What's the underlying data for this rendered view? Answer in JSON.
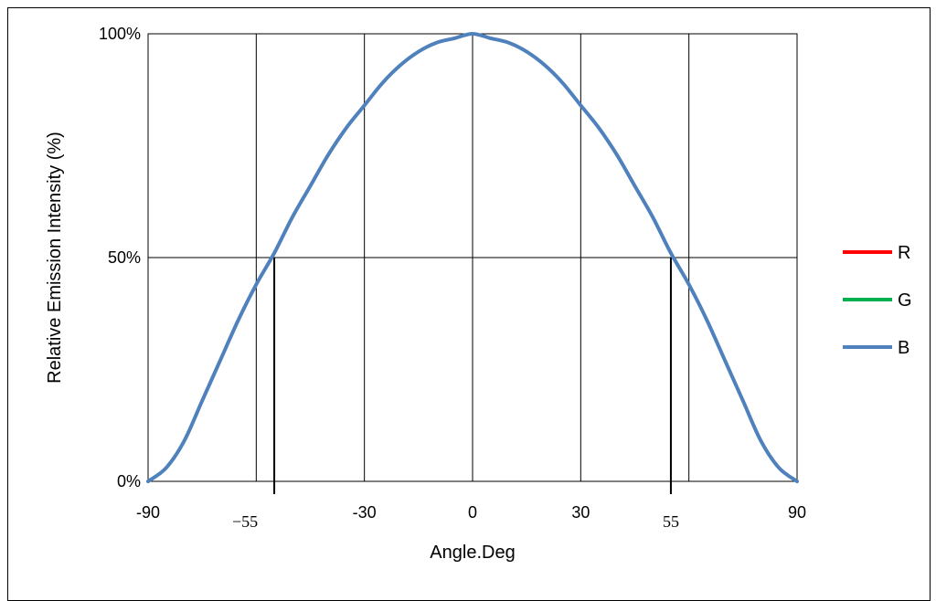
{
  "chart_data": {
    "type": "line",
    "title": "",
    "xlabel": "Angle.Deg",
    "ylabel": "Relative Emission Intensity (%)",
    "xlim": [
      -90,
      90
    ],
    "ylim": [
      0,
      100
    ],
    "x_ticks": [
      -90,
      -30,
      0,
      30,
      90
    ],
    "x_tick_labels": [
      "-90",
      "-30",
      "0",
      "30",
      "90"
    ],
    "x_annotation_ticks": [
      -55,
      55
    ],
    "x_annotation_labels": [
      "−55",
      "55"
    ],
    "y_ticks": [
      0,
      50,
      100
    ],
    "y_tick_labels": [
      "0%",
      "50%",
      "100%"
    ],
    "grid": true,
    "vertical_gridlines": [
      -60,
      -30,
      0,
      30,
      60
    ],
    "half_intensity_marker_angles": [
      -55,
      55
    ],
    "legend_position": "right",
    "series": [
      {
        "name": "R",
        "color": "#ff0000",
        "x": [],
        "y": []
      },
      {
        "name": "G",
        "color": "#00b050",
        "x": [],
        "y": []
      },
      {
        "name": "B",
        "color": "#4f81bd",
        "x": [
          -90,
          -85,
          -80,
          -75,
          -70,
          -65,
          -60,
          -55,
          -50,
          -45,
          -40,
          -35,
          -30,
          -25,
          -20,
          -15,
          -10,
          -5,
          0,
          5,
          10,
          15,
          20,
          25,
          30,
          35,
          40,
          45,
          50,
          55,
          60,
          65,
          70,
          75,
          80,
          85,
          90
        ],
        "y": [
          0,
          3,
          9,
          18,
          27,
          36,
          44,
          51,
          59,
          66,
          73,
          79,
          84,
          89,
          93,
          96,
          98,
          99,
          100,
          99,
          98,
          96,
          93,
          89,
          84,
          79,
          73,
          66,
          59,
          51,
          44,
          36,
          27,
          18,
          9,
          3,
          0
        ]
      }
    ]
  }
}
